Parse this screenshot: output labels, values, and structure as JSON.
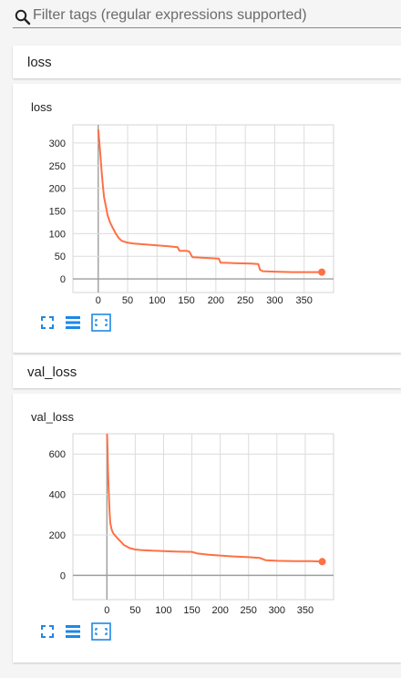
{
  "filter": {
    "placeholder": "Filter tags (regular expressions supported)",
    "value": ""
  },
  "categories": [
    {
      "label": "loss"
    },
    {
      "label": "val_loss"
    }
  ],
  "charts": [
    {
      "title": "loss",
      "chart_data": {
        "type": "line",
        "title": "loss",
        "xlabel": "",
        "ylabel": "",
        "xlim": [
          -43,
          400
        ],
        "ylim": [
          -30,
          340
        ],
        "xticks": [
          0,
          50,
          100,
          150,
          200,
          250,
          300,
          350
        ],
        "yticks": [
          0,
          50,
          100,
          150,
          200,
          250,
          300
        ],
        "grid": true,
        "line_color": "#ff7043",
        "series": [
          {
            "x": [
              0,
              2,
              4,
              6,
              8,
              10,
              13,
              16,
              20,
              25,
              30,
              35,
              40,
              50,
              60,
              80,
              100,
              120,
              135,
              138,
              150,
              155,
              160,
              175,
              190,
              205,
              208,
              230,
              260,
              272,
              275,
              280,
              300,
              330,
              360,
              380
            ],
            "y": [
              330,
              300,
              270,
              235,
              205,
              180,
              160,
              140,
              125,
              112,
              100,
              90,
              84,
              80,
              78,
              76,
              74,
              72,
              70,
              62,
              62,
              60,
              48,
              47,
              46,
              45,
              36,
              35,
              34,
              33,
              20,
              17,
              16,
              15,
              15,
              15
            ]
          }
        ]
      }
    },
    {
      "title": "val_loss",
      "chart_data": {
        "type": "line",
        "title": "val_loss",
        "xlabel": "",
        "ylabel": "",
        "xlim": [
          -60,
          400
        ],
        "ylim": [
          -120,
          700
        ],
        "xticks": [
          0,
          50,
          100,
          150,
          200,
          250,
          300,
          350
        ],
        "yticks": [
          0,
          200,
          400,
          600
        ],
        "grid": true,
        "line_color": "#ff7043",
        "series": [
          {
            "x": [
              0,
              1,
              2,
              3,
              4,
              5,
              6,
              8,
              10,
              12,
              15,
              20,
              25,
              30,
              40,
              50,
              60,
              80,
              100,
              120,
              150,
              160,
              180,
              200,
              220,
              250,
              270,
              280,
              300,
              330,
              360,
              380
            ],
            "y": [
              720,
              640,
              520,
              430,
              360,
              300,
              260,
              230,
              215,
              205,
              195,
              180,
              165,
              150,
              135,
              128,
              125,
              122,
              120,
              118,
              116,
              108,
              102,
              98,
              94,
              90,
              86,
              75,
              72,
              70,
              70,
              68
            ]
          }
        ]
      }
    }
  ],
  "toolbar_icons": [
    "fullscreen-icon",
    "data-series-icon",
    "fit-domain-icon"
  ],
  "accent_color": "#1e88e5"
}
